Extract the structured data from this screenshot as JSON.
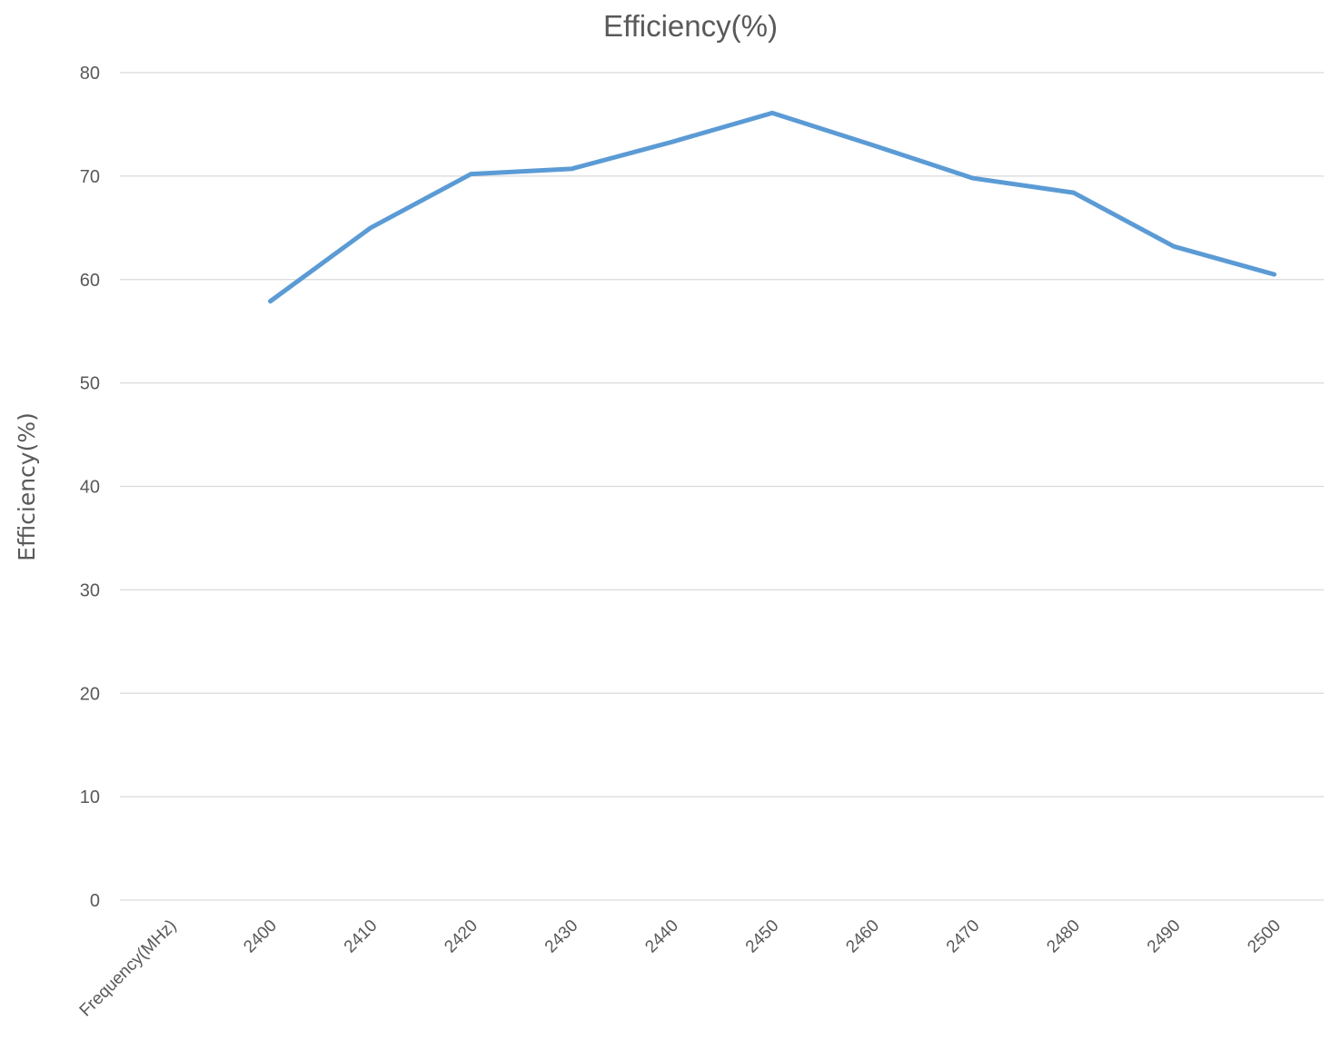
{
  "chart_data": {
    "type": "line",
    "title": "Efficiency(%)",
    "ylabel": "Efficiency(%)",
    "xlabel": "",
    "categories": [
      "Frequency(MHz)",
      "2400",
      "2410",
      "2420",
      "2430",
      "2440",
      "2450",
      "2460",
      "2470",
      "2480",
      "2490",
      "2500"
    ],
    "series": [
      {
        "values": [
          null,
          57.9,
          65.0,
          70.2,
          70.7,
          73.3,
          76.1,
          73.0,
          69.8,
          68.4,
          63.2,
          60.5
        ],
        "color": "#5b9bd5"
      }
    ],
    "ylim": [
      0,
      80
    ],
    "yticks": [
      0,
      10,
      20,
      30,
      40,
      50,
      60,
      70,
      80
    ],
    "grid": true,
    "legend": "none"
  }
}
